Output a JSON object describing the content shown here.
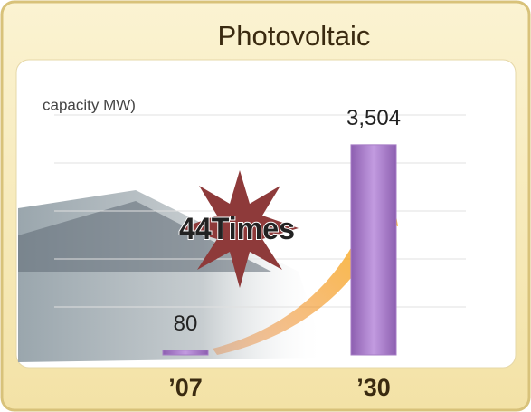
{
  "chart_data": {
    "type": "bar",
    "title": "Photovoltaic",
    "y_label": "capacity MW)",
    "annotation": "44Times",
    "categories": [
      "’07",
      "’30"
    ],
    "values": [
      80,
      3504
    ],
    "value_labels": [
      "80",
      "3,504"
    ],
    "color": "#a67cc6",
    "ylim": [
      0,
      4000
    ]
  }
}
